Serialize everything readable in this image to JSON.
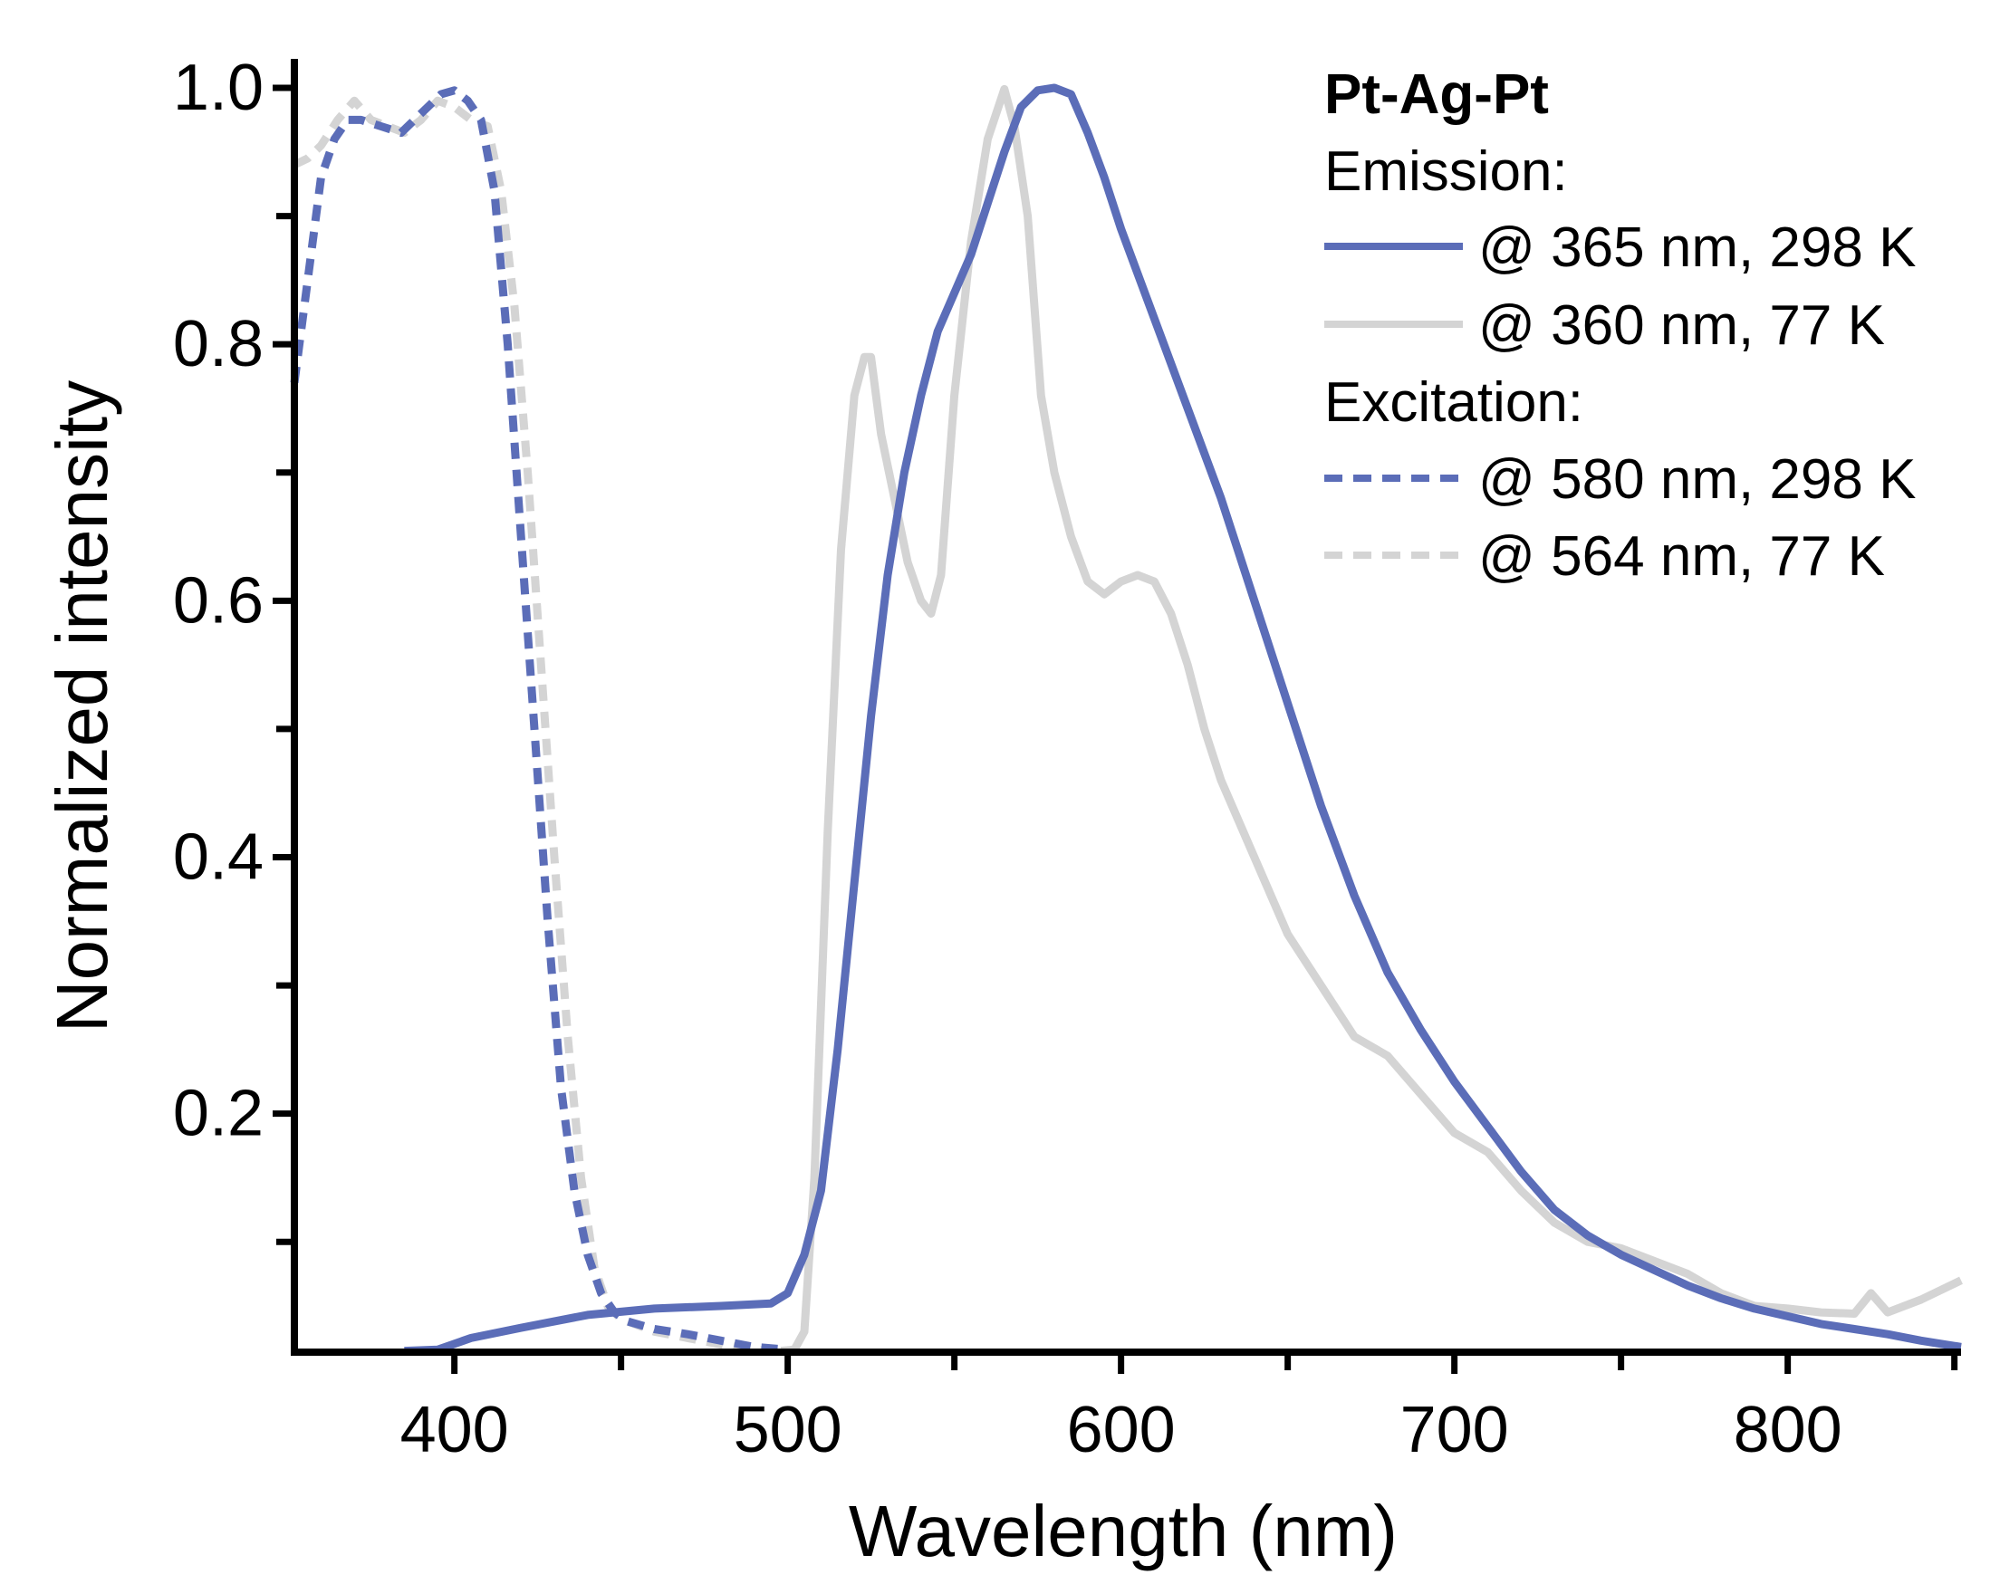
{
  "chart_data": {
    "type": "line",
    "title": "",
    "xlabel": "Wavelength (nm)",
    "ylabel": "Normalized intensity",
    "xlim": [
      352,
      852
    ],
    "ylim": [
      0.014,
      1.0
    ],
    "xticks": [
      400,
      500,
      600,
      700,
      800
    ],
    "xtick_labels": [
      "400",
      "500",
      "600",
      "700",
      "800"
    ],
    "yticks": [
      0.2,
      0.4,
      0.6,
      0.8,
      1.0
    ],
    "ytick_labels": [
      "0.2",
      "0.4",
      "0.6",
      "0.8",
      "1.0"
    ],
    "grid": false,
    "legend": {
      "position": "top-right",
      "title": "Pt-Ag-Pt",
      "groups": [
        {
          "label": "Emission:",
          "entries": [
            {
              "label": "@ 365 nm, 298 K",
              "series": 0
            },
            {
              "label": "@ 360 nm, 77 K",
              "series": 1
            }
          ]
        },
        {
          "label": "Excitation:",
          "entries": [
            {
              "label": "@ 580 nm, 298 K",
              "series": 2
            },
            {
              "label": "@ 564 nm, 77 K",
              "series": 3
            }
          ]
        }
      ]
    },
    "series": [
      {
        "name": "Emission @ 365 nm, 298 K",
        "color": "#5b6db8",
        "style": "solid",
        "x": [
          385,
          395,
          405,
          420,
          440,
          460,
          480,
          495,
          500,
          505,
          510,
          515,
          520,
          525,
          530,
          535,
          540,
          545,
          550,
          555,
          560,
          565,
          570,
          575,
          580,
          585,
          590,
          595,
          600,
          610,
          620,
          630,
          640,
          650,
          660,
          670,
          680,
          690,
          700,
          710,
          720,
          730,
          740,
          750,
          760,
          770,
          780,
          790,
          800,
          810,
          820,
          830,
          840,
          852
        ],
        "y": [
          0.015,
          0.016,
          0.025,
          0.033,
          0.043,
          0.048,
          0.05,
          0.052,
          0.06,
          0.09,
          0.14,
          0.25,
          0.38,
          0.51,
          0.62,
          0.7,
          0.76,
          0.81,
          0.84,
          0.87,
          0.91,
          0.95,
          0.985,
          0.998,
          1.0,
          0.995,
          0.965,
          0.93,
          0.89,
          0.82,
          0.75,
          0.68,
          0.6,
          0.52,
          0.44,
          0.37,
          0.31,
          0.265,
          0.225,
          0.19,
          0.155,
          0.125,
          0.105,
          0.09,
          0.078,
          0.066,
          0.056,
          0.048,
          0.042,
          0.036,
          0.032,
          0.028,
          0.023,
          0.018
        ]
      },
      {
        "name": "Emission @ 360 nm, 77 K",
        "color": "#d4d4d4",
        "style": "solid",
        "x": [
          498,
          502,
          505,
          508,
          512,
          516,
          520,
          523,
          525,
          528,
          532,
          536,
          540,
          543,
          546,
          550,
          555,
          560,
          565,
          568,
          572,
          576,
          580,
          585,
          590,
          595,
          600,
          605,
          610,
          615,
          620,
          625,
          630,
          640,
          650,
          660,
          670,
          680,
          690,
          700,
          710,
          720,
          730,
          740,
          750,
          760,
          770,
          780,
          790,
          800,
          810,
          820,
          825,
          830,
          840,
          852
        ],
        "y": [
          0.015,
          0.016,
          0.03,
          0.15,
          0.42,
          0.64,
          0.76,
          0.79,
          0.79,
          0.73,
          0.68,
          0.63,
          0.6,
          0.59,
          0.62,
          0.76,
          0.88,
          0.96,
          0.999,
          0.97,
          0.9,
          0.76,
          0.7,
          0.65,
          0.615,
          0.605,
          0.615,
          0.62,
          0.615,
          0.59,
          0.55,
          0.5,
          0.46,
          0.4,
          0.34,
          0.3,
          0.26,
          0.245,
          0.215,
          0.185,
          0.17,
          0.14,
          0.115,
          0.1,
          0.095,
          0.085,
          0.075,
          0.06,
          0.05,
          0.048,
          0.045,
          0.044,
          0.06,
          0.045,
          0.055,
          0.07
        ]
      },
      {
        "name": "Excitation @ 580 nm, 298 K",
        "color": "#5b6db8",
        "style": "dashed",
        "x": [
          352,
          356,
          360,
          364,
          368,
          372,
          378,
          384,
          390,
          396,
          400,
          404,
          408,
          412,
          416,
          420,
          424,
          428,
          432,
          436,
          440,
          444,
          448,
          452,
          460,
          470,
          480,
          490,
          500
        ],
        "y": [
          0.77,
          0.85,
          0.93,
          0.96,
          0.975,
          0.975,
          0.97,
          0.965,
          0.98,
          0.995,
          0.998,
          0.99,
          0.975,
          0.92,
          0.8,
          0.65,
          0.5,
          0.35,
          0.22,
          0.14,
          0.09,
          0.06,
          0.045,
          0.038,
          0.032,
          0.028,
          0.023,
          0.018,
          0.016
        ]
      },
      {
        "name": "Excitation @ 564 nm, 77 K",
        "color": "#d4d4d4",
        "style": "dashed",
        "x": [
          352,
          356,
          360,
          365,
          370,
          375,
          380,
          385,
          390,
          395,
          400,
          405,
          410,
          414,
          418,
          422,
          426,
          430,
          434,
          438,
          442,
          446,
          450,
          460,
          470,
          480,
          490,
          500
        ],
        "y": [
          0.94,
          0.945,
          0.955,
          0.975,
          0.99,
          0.975,
          0.97,
          0.965,
          0.975,
          0.99,
          0.985,
          0.975,
          0.97,
          0.92,
          0.83,
          0.7,
          0.55,
          0.4,
          0.26,
          0.15,
          0.08,
          0.05,
          0.04,
          0.03,
          0.025,
          0.02,
          0.016,
          0.014
        ]
      }
    ]
  }
}
